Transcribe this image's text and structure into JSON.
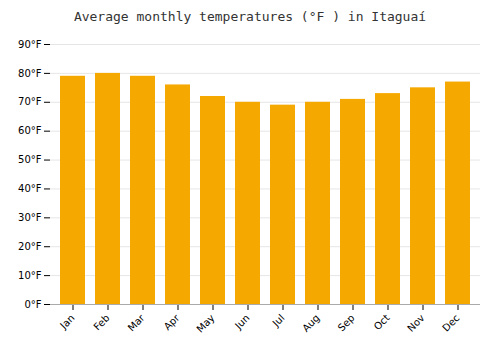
{
  "chart_data": {
    "type": "bar",
    "title": "Average monthly temperatures (°F ) in Itaguaí",
    "categories": [
      "Jan",
      "Feb",
      "Mar",
      "Apr",
      "May",
      "Jun",
      "Jul",
      "Aug",
      "Sep",
      "Oct",
      "Nov",
      "Dec"
    ],
    "values": [
      79,
      80,
      79,
      76,
      72,
      70,
      69,
      70,
      71,
      73,
      75,
      77
    ],
    "color": "#F5A800",
    "ylim": [
      0,
      90
    ],
    "yticks": [
      {
        "value": 0,
        "label": "0°F"
      },
      {
        "value": 10,
        "label": "10°F"
      },
      {
        "value": 20,
        "label": "20°F"
      },
      {
        "value": 30,
        "label": "30°F"
      },
      {
        "value": 40,
        "label": "40°F"
      },
      {
        "value": 50,
        "label": "50°F"
      },
      {
        "value": 60,
        "label": "60°F"
      },
      {
        "value": 70,
        "label": "70°F"
      },
      {
        "value": 80,
        "label": "80°F"
      },
      {
        "value": 90,
        "label": "90°F"
      }
    ],
    "grid": true
  }
}
